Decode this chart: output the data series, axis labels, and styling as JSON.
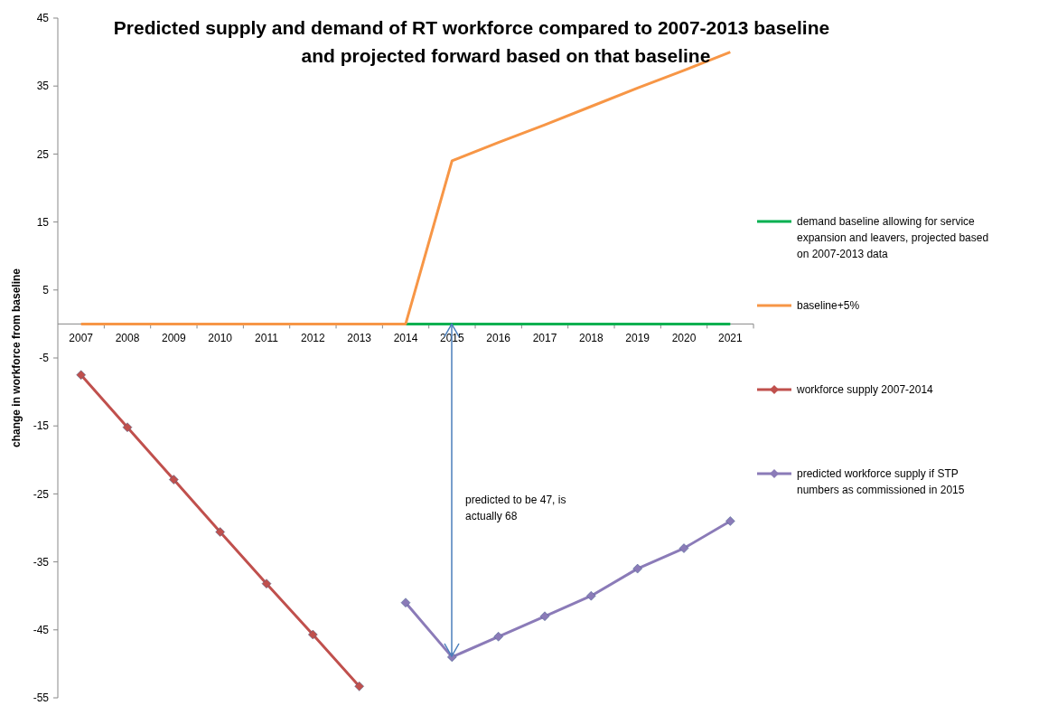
{
  "chart_data": {
    "type": "line",
    "title": "Predicted supply and demand of RT workforce compared to 2007-2013 baseline and projected forward based on that baseline",
    "ylabel": "change in workforce from baseline",
    "categories": [
      "2007",
      "2008",
      "2009",
      "2010",
      "2011",
      "2012",
      "2013",
      "2014",
      "2015",
      "2016",
      "2017",
      "2018",
      "2019",
      "2020",
      "2021"
    ],
    "series": [
      {
        "name": "demand baseline allowing for service expansion and leavers, projected based on 2007-2013 data",
        "color": "#00b050",
        "marker": "none",
        "values": [
          null,
          null,
          null,
          null,
          null,
          null,
          null,
          0,
          0,
          0,
          0,
          0,
          0,
          0,
          0
        ]
      },
      {
        "name": "baseline+5%",
        "color": "#f79646",
        "marker": "none",
        "values": [
          0,
          0,
          0,
          0,
          0,
          0,
          0,
          0,
          24,
          26.7,
          29.3,
          32,
          34.7,
          37.3,
          40
        ]
      },
      {
        "name": "workforce supply 2007-2014",
        "color": "#c0504d",
        "marker": "diamond",
        "values": [
          -7.5,
          -15.2,
          -22.9,
          -30.6,
          -38.2,
          -45.7,
          -53.3,
          null,
          null,
          null,
          null,
          null,
          null,
          null,
          null
        ]
      },
      {
        "name": "predicted workforce supply if STP numbers as commissioned in 2015",
        "color": "#8b7bb8",
        "marker": "diamond",
        "values": [
          null,
          null,
          null,
          null,
          null,
          null,
          null,
          -41,
          -49,
          -46,
          -43,
          -40,
          -36,
          -33,
          -29
        ]
      }
    ],
    "ylim": [
      -55,
      45
    ],
    "yticks": [
      -55,
      -45,
      -35,
      -25,
      -15,
      -5,
      5,
      15,
      25,
      35,
      45
    ],
    "grid": false,
    "legend": "right",
    "annotations": [
      "predicted to be 47, is actually 68"
    ]
  }
}
